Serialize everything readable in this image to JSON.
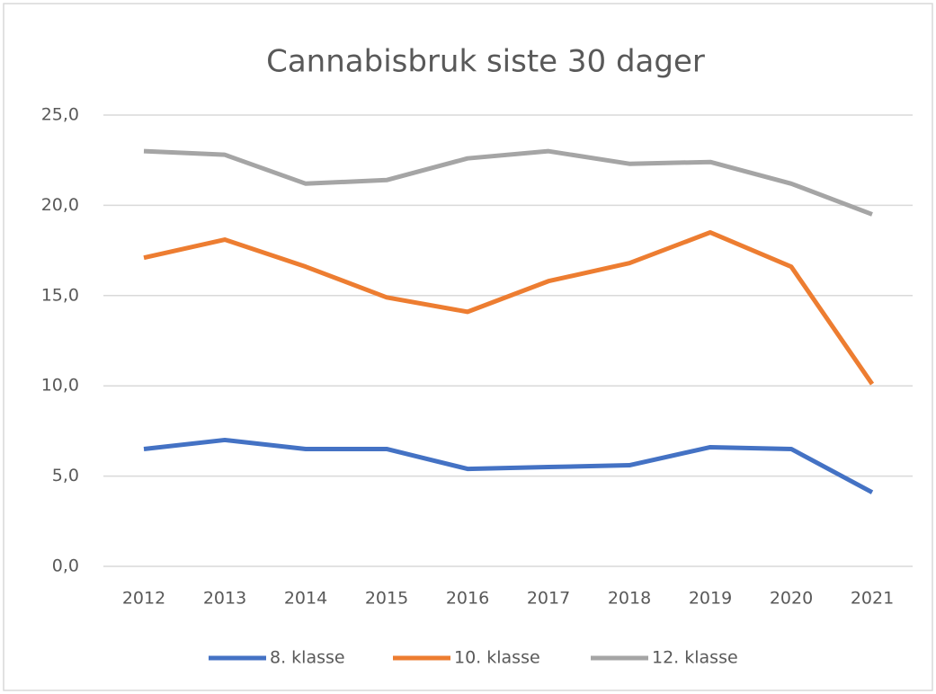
{
  "chart_data": {
    "type": "line",
    "title": "Cannabisbruk siste 30 dager",
    "categories": [
      "2012",
      "2013",
      "2014",
      "2015",
      "2016",
      "2017",
      "2018",
      "2019",
      "2020",
      "2021"
    ],
    "series": [
      {
        "name": "8. klasse",
        "color": "#4472c4",
        "values": [
          6.5,
          7.0,
          6.5,
          6.5,
          5.4,
          5.5,
          5.6,
          6.6,
          6.5,
          4.1
        ]
      },
      {
        "name": "10. klasse",
        "color": "#ed7d31",
        "values": [
          17.1,
          18.1,
          16.6,
          14.9,
          14.1,
          15.8,
          16.8,
          18.5,
          16.6,
          10.1
        ]
      },
      {
        "name": "12. klasse",
        "color": "#a5a5a5",
        "values": [
          23.0,
          22.8,
          21.2,
          21.4,
          22.6,
          23.0,
          22.3,
          22.4,
          21.2,
          19.5
        ]
      }
    ],
    "ylim": [
      0,
      25
    ],
    "yticks": [
      {
        "value": 0,
        "label": "0,0"
      },
      {
        "value": 5,
        "label": "5,0"
      },
      {
        "value": 10,
        "label": "10,0"
      },
      {
        "value": 15,
        "label": "15,0"
      },
      {
        "value": 20,
        "label": "20,0"
      },
      {
        "value": 25,
        "label": "25,0"
      }
    ],
    "grid": true,
    "legend": "bottom"
  }
}
